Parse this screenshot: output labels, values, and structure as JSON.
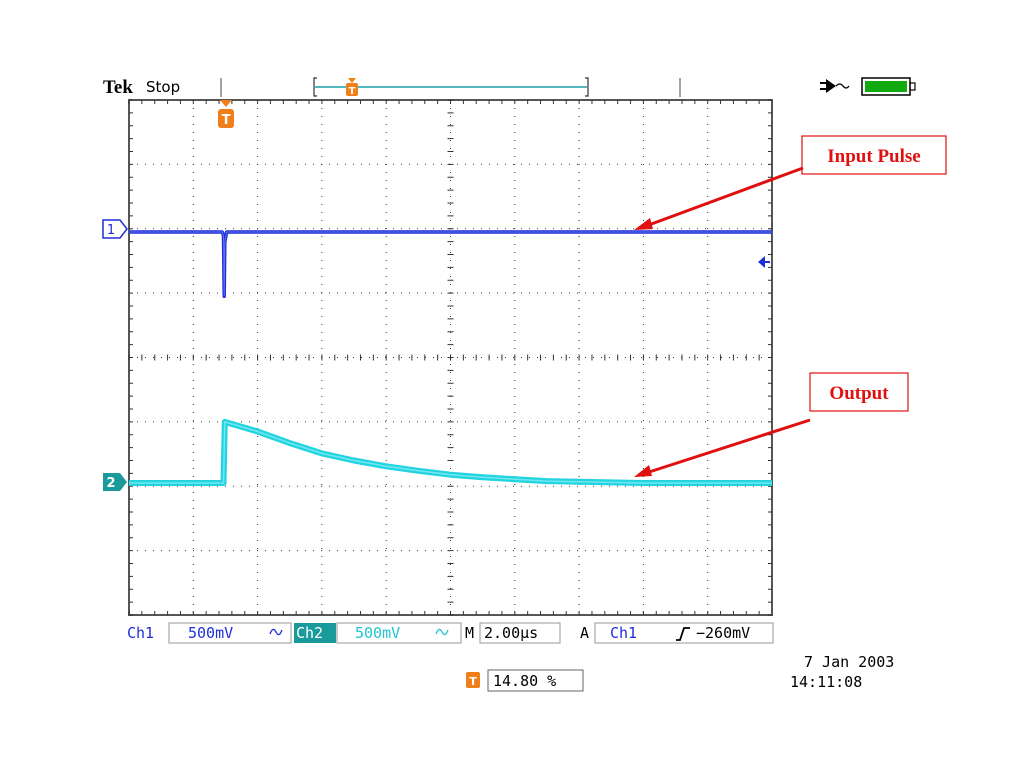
{
  "header": {
    "brand": "Tek",
    "state": "Stop"
  },
  "power": {
    "plug_icon": "ac-plug-icon",
    "battery_icon": "battery-full-icon",
    "battery_color": "#11aa11"
  },
  "trigger": {
    "marker_letter": "T",
    "marker_color": "#f07f1a"
  },
  "channels": {
    "ch1": {
      "marker": "1",
      "color": "#1f2ed8"
    },
    "ch2": {
      "marker": "2",
      "color": "#22d4e0"
    }
  },
  "annotations": {
    "input_pulse": "Input Pulse",
    "output": "Output",
    "color": "#e01010"
  },
  "readout": {
    "ch1_label": "Ch1",
    "ch1_scale": "500mV",
    "ch1_coupling_icon": "ac-coupling-icon",
    "ch2_label": "Ch2",
    "ch2_scale": "500mV",
    "ch2_coupling_icon": "ac-coupling-icon",
    "time_label": "M",
    "time_scale": "2.00µs",
    "trig_mode": "A",
    "trig_source": "Ch1",
    "trig_slope_icon": "rising-edge-icon",
    "trig_level": "−260mV",
    "trig_position": "14.80 %",
    "date": "7 Jan  2003",
    "time": "14:11:08"
  },
  "chart_data": {
    "type": "line",
    "title": "",
    "xlabel": "",
    "ylabel": "",
    "x_divisions": 10,
    "y_divisions": 8,
    "x_range_div": [
      0,
      10
    ],
    "y_range_div": [
      -4,
      4
    ],
    "grid": true,
    "trigger_position_div": 1.48,
    "series": [
      {
        "channel": "Ch1",
        "x_div": [
          0,
          1.45,
          1.47,
          1.48,
          1.49,
          1.52,
          2.0,
          10
        ],
        "y_div": [
          1.95,
          1.95,
          1.9,
          0.95,
          1.8,
          1.95,
          1.95,
          1.95
        ]
      },
      {
        "channel": "Ch2",
        "x_div": [
          0,
          1.47,
          1.49,
          2.0,
          2.5,
          3.0,
          3.5,
          4.0,
          4.5,
          5.0,
          5.5,
          6.0,
          6.5,
          7.0,
          7.5,
          8.0,
          10
        ],
        "y_div": [
          -1.95,
          -1.95,
          -1.0,
          -1.15,
          -1.33,
          -1.49,
          -1.6,
          -1.69,
          -1.76,
          -1.82,
          -1.86,
          -1.89,
          -1.92,
          -1.93,
          -1.94,
          -1.95,
          -1.95
        ]
      }
    ]
  }
}
